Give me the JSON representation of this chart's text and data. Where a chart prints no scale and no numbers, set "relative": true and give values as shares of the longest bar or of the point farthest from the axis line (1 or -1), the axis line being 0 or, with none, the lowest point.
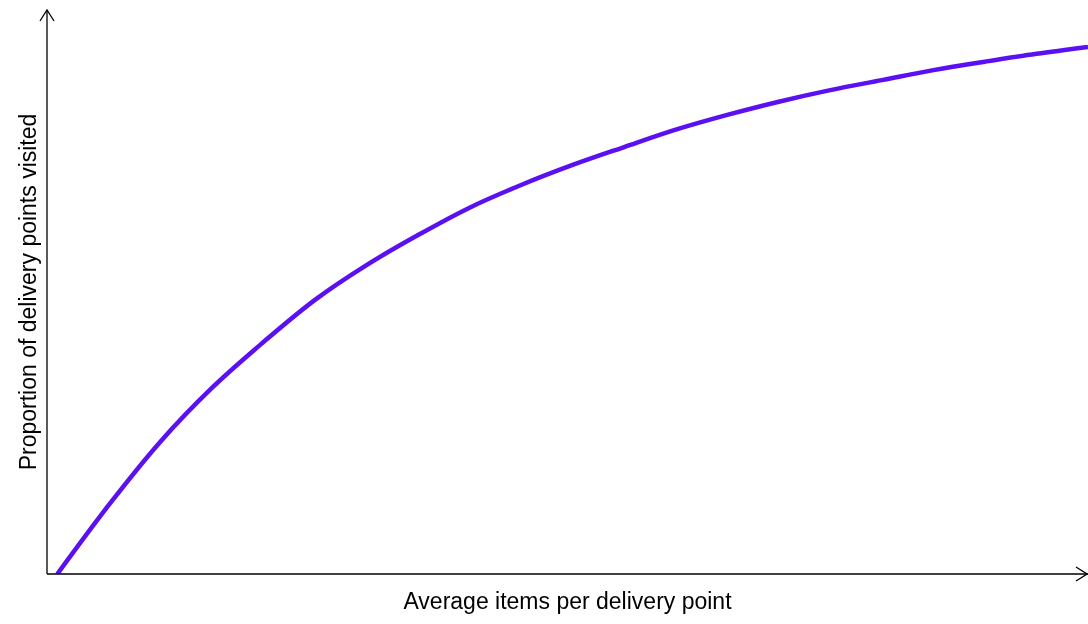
{
  "chart_data": {
    "type": "line",
    "relative": true,
    "xlabel": "Average items per delivery point",
    "ylabel": "Proportion of delivery points visited",
    "categories": [
      null,
      null,
      null,
      null,
      null,
      null,
      null,
      null,
      null,
      null,
      null,
      null,
      null,
      null,
      null,
      null,
      null,
      null,
      null,
      null,
      null
    ],
    "series": [
      {
        "color": "#5a10f0",
        "values": [
          0,
          0.131,
          0.251,
          0.353,
          0.44,
          0.52,
          0.586,
          0.643,
          0.695,
          0.738,
          0.776,
          0.81,
          0.843,
          0.871,
          0.896,
          0.918,
          0.937,
          0.956,
          0.972,
          0.987,
          1
        ]
      }
    ],
    "grid": false,
    "legend": false,
    "marker": "none",
    "line_style": "solid"
  }
}
